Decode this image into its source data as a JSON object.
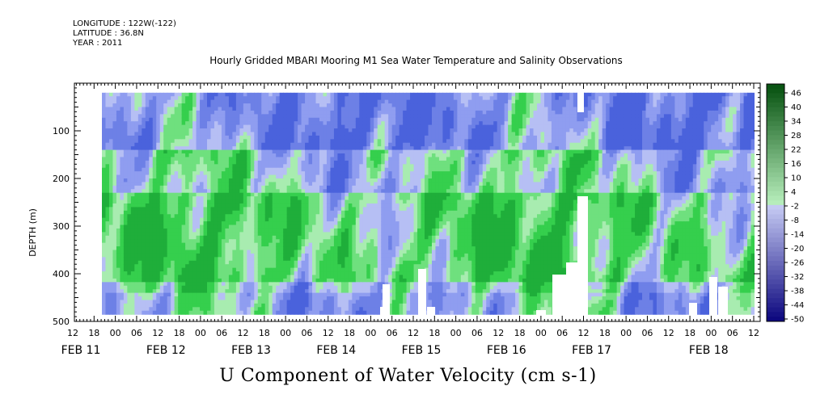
{
  "header": {
    "longitude": "LONGITUDE : 122W(-122)",
    "latitude": "LATITUDE : 36.8N",
    "year": "YEAR : 2011"
  },
  "chart_data": {
    "type": "heatmap",
    "title": "Hourly Gridded MBARI Mooring M1 Sea Water Temperature and Salinity Observations",
    "subtitle": "U Component of Water Velocity (cm s-1)",
    "ylabel": "DEPTH (m)",
    "y_ticks": [
      100,
      200,
      300,
      400,
      500
    ],
    "ylim": [
      500,
      0
    ],
    "x_hour_ticks": [
      "12",
      "18",
      "00",
      "06",
      "12",
      "18",
      "00",
      "06",
      "12",
      "18",
      "00",
      "06",
      "12",
      "18",
      "00",
      "06",
      "12",
      "18",
      "00",
      "06",
      "12",
      "18",
      "00",
      "06",
      "12",
      "18",
      "00",
      "06",
      "12",
      "18",
      "00",
      "06",
      "12"
    ],
    "x_date_labels": [
      "FEB 11",
      "FEB 12",
      "FEB 13",
      "FEB 14",
      "FEB 15",
      "FEB 16",
      "FEB 17",
      "FEB 18"
    ],
    "colorbar": {
      "labels": [
        "46",
        "40",
        "34",
        "28",
        "22",
        "16",
        "10",
        "4",
        "-2",
        "-8",
        "-14",
        "-20",
        "-26",
        "-32",
        "-38",
        "-44",
        "-50"
      ],
      "min": -50,
      "max": 52
    },
    "data_depth_range": [
      20,
      485
    ],
    "colors": {
      "positive": "#35d04a",
      "light_positive": "#9fe8a8",
      "negative": "#8e9df0",
      "strong_negative": "#3b55d9"
    }
  }
}
